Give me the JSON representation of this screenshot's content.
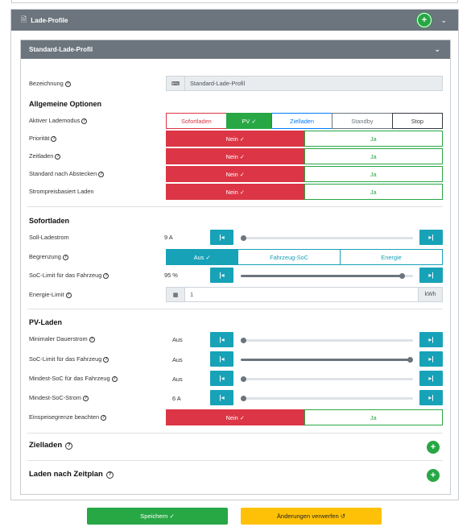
{
  "outer": {
    "title": "Lade-Profile"
  },
  "profile": {
    "title": "Standard-Lade-Profil"
  },
  "bezeichnung": {
    "label": "Bezeichnung",
    "value": "Standard-Lade-Profil"
  },
  "allgemein": {
    "title": "Allgemeine Optionen",
    "lademodus": {
      "label": "Aktiver Lademodus",
      "options": [
        "Sofortladen",
        "PV ✓",
        "Zielladen",
        "Standby",
        "Stop"
      ],
      "selected": "PV"
    },
    "prioritaet": {
      "label": "Priorität",
      "no": "Nein ✓",
      "yes": "Ja",
      "selected": "Nein"
    },
    "zeitladen": {
      "label": "Zeitladen",
      "no": "Nein ✓",
      "yes": "Ja",
      "selected": "Nein"
    },
    "standard": {
      "label": "Standard nach Abstecken",
      "no": "Nein ✓",
      "yes": "Ja",
      "selected": "Nein"
    },
    "strompreis": {
      "label": "Strompreisbasiert Laden",
      "no": "Nein ✓",
      "yes": "Ja",
      "selected": "Nein"
    }
  },
  "sofort": {
    "title": "Sofortladen",
    "soll": {
      "label": "Soll-Ladestrom",
      "value": "9 A",
      "level": 0
    },
    "begrenzung": {
      "label": "Begrenzung",
      "options": [
        "Aus ✓",
        "Fahrzeug-SoC",
        "Energie"
      ],
      "selected": "Aus"
    },
    "soclimit": {
      "label": "SoC-Limit für das Fahrzeug",
      "value": "95 %",
      "level": 0.95
    },
    "energie": {
      "label": "Energie-Limit",
      "value": "1",
      "unit": "kWh"
    }
  },
  "pv": {
    "title": "PV-Laden",
    "mindauer": {
      "label": "Minimaler Dauerstrom",
      "value": "Aus",
      "level": 0
    },
    "soclimit": {
      "label": "SoC-Limit für das Fahrzeug",
      "value": "Aus",
      "level": 1
    },
    "minsoc": {
      "label": "Mindest-SoC für das Fahrzeug",
      "value": "Aus",
      "level": 0
    },
    "minsocstrom": {
      "label": "Mindest-SoC-Strom",
      "value": "6 A",
      "level": 0
    },
    "einspeise": {
      "label": "Einspeisegrenze beachten",
      "no": "Nein ✓",
      "yes": "Ja",
      "selected": "Nein"
    }
  },
  "zielladen": {
    "title": "Zielladen"
  },
  "zeitplan": {
    "title": "Laden nach Zeitplan"
  },
  "buttons": {
    "save": "Speichern ✓",
    "discard": "Änderungen verwerfen ↺"
  },
  "icons": {
    "plus": "+",
    "chevron": "⌄",
    "step_left": "|◂",
    "step_right": "▸|",
    "doc": "document-icon",
    "keyboard": "keyboard-icon",
    "calculator": "calculator-icon"
  },
  "colors": {
    "red": "#dc3545",
    "green": "#28a745",
    "teal": "#17a2b8",
    "yellow": "#ffc107",
    "header": "#6c757d"
  }
}
